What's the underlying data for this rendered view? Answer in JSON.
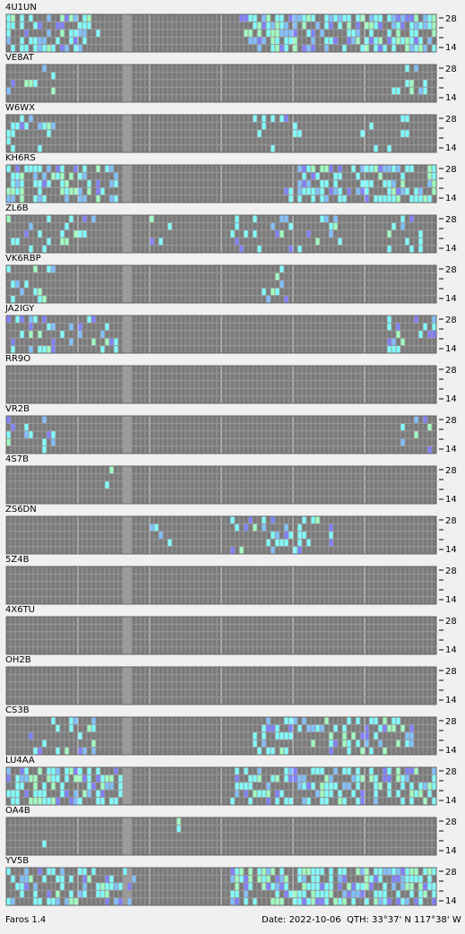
{
  "panels": [
    {
      "callsign": "4U1UN"
    },
    {
      "callsign": "VE8AT"
    },
    {
      "callsign": "W6WX"
    },
    {
      "callsign": "KH6RS"
    },
    {
      "callsign": "ZL6B"
    },
    {
      "callsign": "VK6RBP"
    },
    {
      "callsign": "JA2IGY"
    },
    {
      "callsign": "RR9O"
    },
    {
      "callsign": "VR2B"
    },
    {
      "callsign": "4S7B"
    },
    {
      "callsign": "ZS6DN"
    },
    {
      "callsign": "5Z4B"
    },
    {
      "callsign": "4X6TU"
    },
    {
      "callsign": "OH2B"
    },
    {
      "callsign": "CS3B"
    },
    {
      "callsign": "LU4AA"
    },
    {
      "callsign": "OA4B"
    },
    {
      "callsign": "YV5B"
    }
  ],
  "band_labels": {
    "top": "28",
    "bottom": "14"
  },
  "status": {
    "app": "Faros 1.4",
    "date": "Date: 2022-10-06",
    "qth": "QTH: 33°37' N  117°38' W"
  }
}
